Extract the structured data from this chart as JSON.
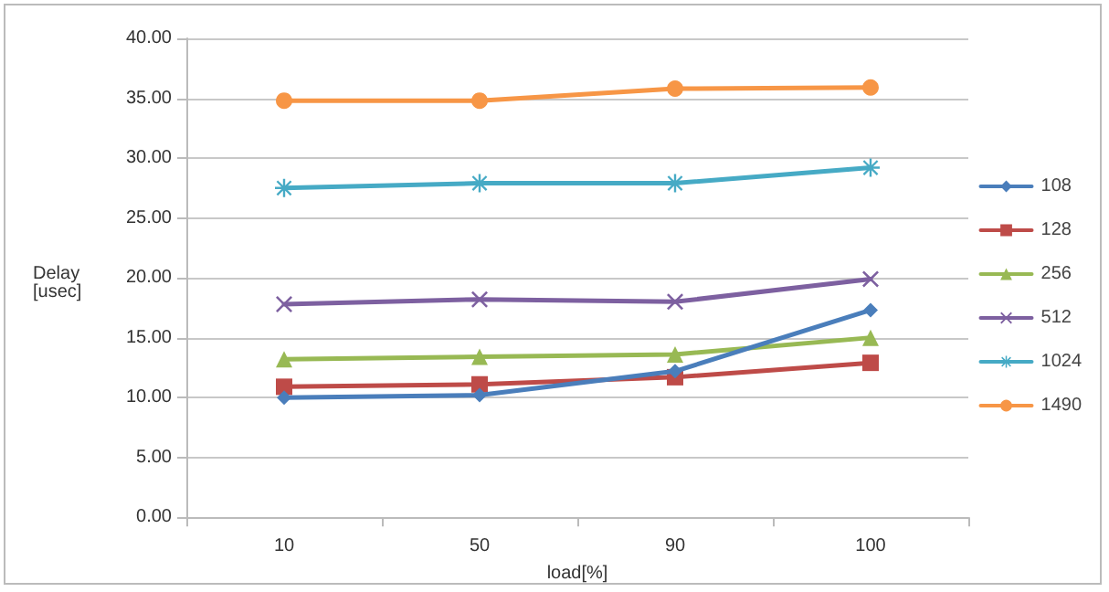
{
  "chart_data": {
    "type": "line",
    "xlabel": "load[%]",
    "ylabel": "Delay\n[usec]",
    "categories": [
      "10",
      "50",
      "90",
      "100"
    ],
    "series": [
      {
        "name": "108",
        "color": "#4a7ebb",
        "marker": "diamond",
        "values": [
          10.0,
          10.2,
          12.2,
          17.3
        ]
      },
      {
        "name": "128",
        "color": "#be4b48",
        "marker": "square",
        "values": [
          10.9,
          11.1,
          11.7,
          12.9
        ]
      },
      {
        "name": "256",
        "color": "#98b954",
        "marker": "triangle",
        "values": [
          13.2,
          13.4,
          13.6,
          15.0
        ]
      },
      {
        "name": "512",
        "color": "#7d60a0",
        "marker": "cross",
        "values": [
          17.8,
          18.2,
          18.0,
          19.9
        ]
      },
      {
        "name": "1024",
        "color": "#46aac5",
        "marker": "star",
        "values": [
          27.5,
          27.9,
          27.9,
          29.2
        ]
      },
      {
        "name": "1490",
        "color": "#f79646",
        "marker": "circle",
        "values": [
          34.8,
          34.8,
          35.8,
          35.9
        ]
      }
    ],
    "ylim": [
      0,
      40
    ],
    "yticks": [
      {
        "value": 0,
        "label": "0.00"
      },
      {
        "value": 5,
        "label": "5.00"
      },
      {
        "value": 10,
        "label": "10.00"
      },
      {
        "value": 15,
        "label": "15.00"
      },
      {
        "value": 20,
        "label": "20.00"
      },
      {
        "value": 25,
        "label": "25.00"
      },
      {
        "value": 30,
        "label": "30.00"
      },
      {
        "value": 35,
        "label": "35.00"
      },
      {
        "value": 40,
        "label": "40.00"
      }
    ],
    "grid": "y",
    "legend": "right",
    "line_style": "solid"
  }
}
